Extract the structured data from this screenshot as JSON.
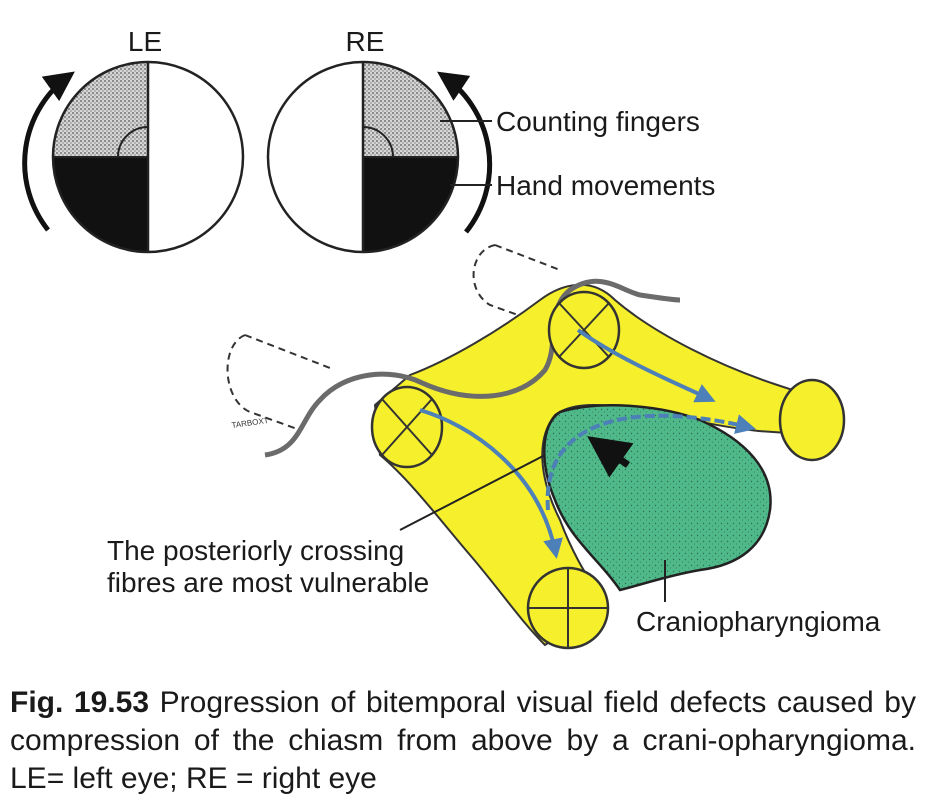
{
  "eyes": {
    "left_label": "LE",
    "right_label": "RE"
  },
  "legend": {
    "counting_fingers": "Counting fingers",
    "hand_movements": "Hand movements"
  },
  "labels": {
    "crossing_line1": "The posteriorly crossing",
    "crossing_line2": "fibres are most vulnerable",
    "tumour": "Craniopharyngioma"
  },
  "caption": {
    "fig_number": "Fig. 19.53",
    "text": " Progression of bitemporal visual field defects caused by compression of the chiasm from above by a crani-opharyngioma. LE= left eye; RE = right eye"
  },
  "colors": {
    "nerve_fill": "#f5ef2c",
    "tumour_fill": "#4fb98a",
    "arrow_blue": "#4d7fb8",
    "field_dark": "#111111",
    "field_stipple": "#c8c8c8"
  }
}
